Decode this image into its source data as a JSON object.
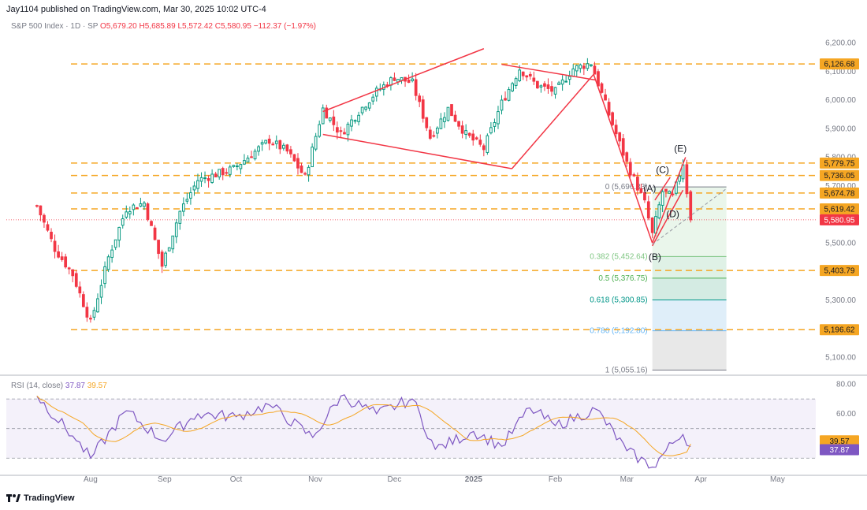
{
  "header": {
    "publisher": "Jay1104 published on TradingView.com, Mar 30, 2025 10:02 UTC-4"
  },
  "legend": {
    "symbol": "S&P 500 Index · 1D · SP",
    "open": "O5,679.20",
    "high": "H5,685.89",
    "low": "L5,572.42",
    "close": "C5,580.95",
    "change": "−112.37 (−1.97%)"
  },
  "rsi_legend": {
    "name": "RSI (14, close)",
    "rsi": "37.87",
    "ma": "39.57"
  },
  "footer": {
    "brand": "TradingView"
  },
  "colors": {
    "up": "#089981",
    "down": "#f23645",
    "level": "#f5a623",
    "trend": "#f23645",
    "rsi": "#7e57c2",
    "rsi_ma": "#f5a623",
    "current": "#f23645"
  },
  "chart_data": [
    {
      "type": "candlestick",
      "title": "",
      "ylim": [
        5040,
        6240
      ],
      "y_ticks": [
        "6,200.00",
        "6,100.00",
        "6,000.00",
        "5,900.00",
        "5,800.00",
        "5,700.00",
        "5,600.00",
        "5,500.00",
        "5,400.00",
        "5,300.00",
        "5,200.00",
        "5,100.00"
      ],
      "x_ticks": [
        "Aug",
        "Sep",
        "Oct",
        "Nov",
        "Dec",
        "2025",
        "Feb",
        "Mar",
        "Apr",
        "May"
      ],
      "support_levels": [
        "6,126.68",
        "5,779.75",
        "5,736.05",
        "5,674.78",
        "5,619.42",
        "5,403.79",
        "5,196.62"
      ],
      "current_price": "5,580.95",
      "wave_labels": [
        "(A)",
        "(B)",
        "(C)",
        "(D)",
        "(E)"
      ],
      "fibonacci": [
        {
          "label": "0 (5,696.33)",
          "value": 5696.33
        },
        {
          "label": "0.382 (5,452.64)",
          "value": 5452.64
        },
        {
          "label": "0.5 (5,376.75)",
          "value": 5376.75
        },
        {
          "label": "0.618 (5,300.85)",
          "value": 5300.85
        },
        {
          "label": "0.786 (5,192.80)",
          "value": 5192.8
        },
        {
          "label": "1 (5,055.16)",
          "value": 5055.16
        }
      ],
      "close_path": [
        [
          "2024-07-15",
          5630
        ],
        [
          "2024-07-22",
          5480
        ],
        [
          "2024-07-29",
          5390
        ],
        [
          "2024-08-05",
          5220
        ],
        [
          "2024-08-12",
          5450
        ],
        [
          "2024-08-19",
          5620
        ],
        [
          "2024-08-26",
          5640
        ],
        [
          "2024-09-02",
          5420
        ],
        [
          "2024-09-09",
          5610
        ],
        [
          "2024-09-16",
          5720
        ],
        [
          "2024-09-23",
          5740
        ],
        [
          "2024-09-30",
          5760
        ],
        [
          "2024-10-07",
          5810
        ],
        [
          "2024-10-14",
          5860
        ],
        [
          "2024-10-21",
          5820
        ],
        [
          "2024-10-28",
          5730
        ],
        [
          "2024-11-04",
          5970
        ],
        [
          "2024-11-11",
          5880
        ],
        [
          "2024-11-18",
          5960
        ],
        [
          "2024-11-25",
          6030
        ],
        [
          "2024-12-02",
          6080
        ],
        [
          "2024-12-09",
          6060
        ],
        [
          "2024-12-16",
          5870
        ],
        [
          "2024-12-23",
          5970
        ],
        [
          "2024-12-30",
          5880
        ],
        [
          "2025-01-06",
          5830
        ],
        [
          "2025-01-13",
          5990
        ],
        [
          "2025-01-20",
          6110
        ],
        [
          "2025-01-27",
          6050
        ],
        [
          "2025-02-03",
          6030
        ],
        [
          "2025-02-10",
          6110
        ],
        [
          "2025-02-17",
          6130
        ],
        [
          "2025-02-24",
          5950
        ],
        [
          "2025-03-03",
          5780
        ],
        [
          "2025-03-10",
          5640
        ],
        [
          "2025-03-13",
          5530
        ],
        [
          "2025-03-17",
          5680
        ],
        [
          "2025-03-21",
          5660
        ],
        [
          "2025-03-25",
          5780
        ],
        [
          "2025-03-28",
          5580.95
        ]
      ]
    },
    {
      "type": "line",
      "title": "",
      "ylim": [
        20,
        85
      ],
      "y_ticks": [
        "80.00",
        "60.00"
      ],
      "rsi_last": "37.87",
      "ma_last": "39.57",
      "rsi_path": [
        [
          "2024-07-15",
          72
        ],
        [
          "2024-07-29",
          45
        ],
        [
          "2024-08-05",
          30
        ],
        [
          "2024-08-19",
          62
        ],
        [
          "2024-09-02",
          42
        ],
        [
          "2024-09-16",
          60
        ],
        [
          "2024-10-01",
          58
        ],
        [
          "2024-10-14",
          66
        ],
        [
          "2024-10-31",
          44
        ],
        [
          "2024-11-11",
          72
        ],
        [
          "2024-11-25",
          60
        ],
        [
          "2024-12-09",
          70
        ],
        [
          "2024-12-18",
          36
        ],
        [
          "2025-01-02",
          48
        ],
        [
          "2025-01-13",
          38
        ],
        [
          "2025-01-24",
          64
        ],
        [
          "2025-02-03",
          52
        ],
        [
          "2025-02-19",
          63
        ],
        [
          "2025-03-03",
          35
        ],
        [
          "2025-03-13",
          24
        ],
        [
          "2025-03-21",
          40
        ],
        [
          "2025-03-25",
          46
        ],
        [
          "2025-03-28",
          37.87
        ]
      ]
    }
  ]
}
